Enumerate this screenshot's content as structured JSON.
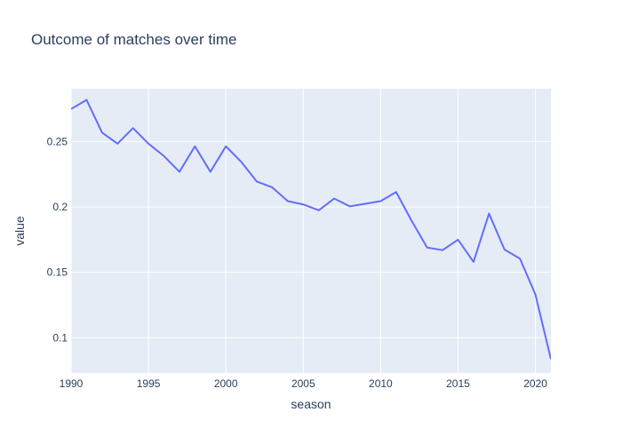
{
  "chart_data": {
    "type": "line",
    "title": "Outcome of matches over time",
    "xlabel": "season",
    "ylabel": "value",
    "xlim": [
      1990,
      2021
    ],
    "ylim": [
      0.073,
      0.2905
    ],
    "x_ticks": [
      1990,
      1995,
      2000,
      2005,
      2010,
      2015,
      2020
    ],
    "y_ticks": [
      0.1,
      0.15,
      0.2,
      0.25
    ],
    "y_tick_labels": [
      "0.1",
      "0.15",
      "0.2",
      "0.25"
    ],
    "grid": true,
    "legend": "none",
    "line_color": "#636efa",
    "plot_bgcolor": "#e5ecf6",
    "grid_color": "#ffffff",
    "series": [
      {
        "x": [
          1990,
          1991,
          1992,
          1993,
          1994,
          1995,
          1996,
          1997,
          1998,
          1999,
          2000,
          2001,
          2002,
          2003,
          2004,
          2005,
          2006,
          2007,
          2008,
          2009,
          2010,
          2011,
          2012,
          2013,
          2014,
          2015,
          2016,
          2017,
          2018,
          2019,
          2020,
          2021
        ],
        "values": [
          0.275,
          0.282,
          0.257,
          0.2485,
          0.2605,
          0.2485,
          0.239,
          0.227,
          0.2465,
          0.227,
          0.2465,
          0.2345,
          0.2195,
          0.215,
          0.2045,
          0.202,
          0.1975,
          0.2065,
          0.2005,
          0.2025,
          0.2045,
          0.2115,
          0.1895,
          0.169,
          0.167,
          0.175,
          0.158,
          0.195,
          0.1675,
          0.1605,
          0.133,
          0.0835
        ]
      }
    ]
  }
}
